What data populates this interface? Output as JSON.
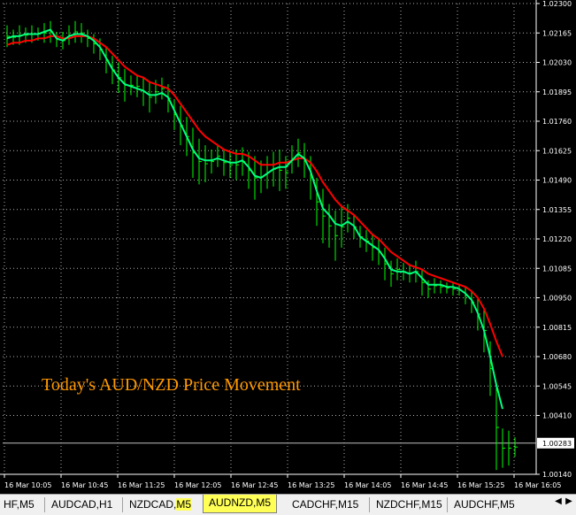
{
  "chart_data": {
    "type": "line",
    "symbol": "AUDNZD",
    "timeframe": "M5",
    "annotation": "Today's AUD/NZD Price Movement",
    "current_price_label": "1.00283",
    "y_ticks": [
      "1.02300",
      "1.02165",
      "1.02030",
      "1.01895",
      "1.01760",
      "1.01625",
      "1.01490",
      "1.01355",
      "1.01220",
      "1.01085",
      "1.00950",
      "1.00815",
      "1.00680",
      "1.00545",
      "1.00410",
      "1.00140"
    ],
    "x_ticks": [
      "16 Mar 10:05",
      "16 Mar 10:45",
      "16 Mar 11:25",
      "16 Mar 12:05",
      "16 Mar 12:45",
      "16 Mar 13:25",
      "16 Mar 14:05",
      "16 Mar 14:45",
      "16 Mar 15:25",
      "16 Mar 16:05"
    ],
    "ylim": [
      1.0014,
      1.023
    ],
    "grid": true,
    "colors": {
      "background": "#000000",
      "grid": "#b0b0b0",
      "axis_text": "#ffffff",
      "bars": "#00ff00",
      "fast_ma": "#00ff80",
      "slow_ma": "#ff0000",
      "annotation": "#ff9900",
      "price_line": "#c0c0c0"
    },
    "bars": [
      {
        "t": 0,
        "high": 1.022,
        "low": 1.021
      },
      {
        "t": 1,
        "high": 1.0218,
        "low": 1.0211
      },
      {
        "t": 2,
        "high": 1.022,
        "low": 1.0211
      },
      {
        "t": 3,
        "high": 1.0219,
        "low": 1.0212
      },
      {
        "t": 4,
        "high": 1.022,
        "low": 1.0212
      },
      {
        "t": 5,
        "high": 1.0219,
        "low": 1.0213
      },
      {
        "t": 6,
        "high": 1.0221,
        "low": 1.0212
      },
      {
        "t": 7,
        "high": 1.0222,
        "low": 1.0212
      },
      {
        "t": 8,
        "high": 1.0217,
        "low": 1.021
      },
      {
        "t": 9,
        "high": 1.0217,
        "low": 1.0209
      },
      {
        "t": 10,
        "high": 1.022,
        "low": 1.0211
      },
      {
        "t": 11,
        "high": 1.0222,
        "low": 1.0212
      },
      {
        "t": 12,
        "high": 1.0221,
        "low": 1.0212
      },
      {
        "t": 13,
        "high": 1.0218,
        "low": 1.021
      },
      {
        "t": 14,
        "high": 1.0216,
        "low": 1.0207
      },
      {
        "t": 15,
        "high": 1.0214,
        "low": 1.0204
      },
      {
        "t": 16,
        "high": 1.021,
        "low": 1.0198
      },
      {
        "t": 17,
        "high": 1.0206,
        "low": 1.0193
      },
      {
        "t": 18,
        "high": 1.0203,
        "low": 1.0189
      },
      {
        "t": 19,
        "high": 1.02,
        "low": 1.0185
      },
      {
        "t": 20,
        "high": 1.0197,
        "low": 1.0188
      },
      {
        "t": 21,
        "high": 1.0197,
        "low": 1.0187
      },
      {
        "t": 22,
        "high": 1.0196,
        "low": 1.0183
      },
      {
        "t": 23,
        "high": 1.0194,
        "low": 1.018
      },
      {
        "t": 24,
        "high": 1.0195,
        "low": 1.0184
      },
      {
        "t": 25,
        "high": 1.0196,
        "low": 1.0186
      },
      {
        "t": 26,
        "high": 1.0193,
        "low": 1.018
      },
      {
        "t": 27,
        "high": 1.0186,
        "low": 1.0172
      },
      {
        "t": 28,
        "high": 1.0183,
        "low": 1.0165
      },
      {
        "t": 29,
        "high": 1.0178,
        "low": 1.016
      },
      {
        "t": 30,
        "high": 1.0173,
        "low": 1.015
      },
      {
        "t": 31,
        "high": 1.0168,
        "low": 1.0147
      },
      {
        "t": 32,
        "high": 1.0165,
        "low": 1.0148
      },
      {
        "t": 33,
        "high": 1.0163,
        "low": 1.0152
      },
      {
        "t": 34,
        "high": 1.0165,
        "low": 1.0155
      },
      {
        "t": 35,
        "high": 1.0163,
        "low": 1.0151
      },
      {
        "t": 36,
        "high": 1.0162,
        "low": 1.015
      },
      {
        "t": 37,
        "high": 1.0163,
        "low": 1.0149
      },
      {
        "t": 38,
        "high": 1.0164,
        "low": 1.0151
      },
      {
        "t": 39,
        "high": 1.0162,
        "low": 1.0145
      },
      {
        "t": 40,
        "high": 1.016,
        "low": 1.014
      },
      {
        "t": 41,
        "high": 1.0158,
        "low": 1.0143
      },
      {
        "t": 42,
        "high": 1.016,
        "low": 1.0145
      },
      {
        "t": 43,
        "high": 1.0162,
        "low": 1.0146
      },
      {
        "t": 44,
        "high": 1.0163,
        "low": 1.0144
      },
      {
        "t": 45,
        "high": 1.016,
        "low": 1.0145
      },
      {
        "t": 46,
        "high": 1.0165,
        "low": 1.0152
      },
      {
        "t": 47,
        "high": 1.0168,
        "low": 1.0155
      },
      {
        "t": 48,
        "high": 1.0166,
        "low": 1.015
      },
      {
        "t": 49,
        "high": 1.016,
        "low": 1.014
      },
      {
        "t": 50,
        "high": 1.015,
        "low": 1.0128
      },
      {
        "t": 51,
        "high": 1.0145,
        "low": 1.012
      },
      {
        "t": 52,
        "high": 1.0138,
        "low": 1.0118
      },
      {
        "t": 53,
        "high": 1.0135,
        "low": 1.0112
      },
      {
        "t": 54,
        "high": 1.0137,
        "low": 1.0118
      },
      {
        "t": 55,
        "high": 1.0138,
        "low": 1.0125
      },
      {
        "t": 56,
        "high": 1.0133,
        "low": 1.0122
      },
      {
        "t": 57,
        "high": 1.0128,
        "low": 1.0118
      },
      {
        "t": 58,
        "high": 1.0126,
        "low": 1.0116
      },
      {
        "t": 59,
        "high": 1.0124,
        "low": 1.0112
      },
      {
        "t": 60,
        "high": 1.0122,
        "low": 1.011
      },
      {
        "t": 61,
        "high": 1.0118,
        "low": 1.0103
      },
      {
        "t": 62,
        "high": 1.0112,
        "low": 1.01
      },
      {
        "t": 63,
        "high": 1.0113,
        "low": 1.0103
      },
      {
        "t": 64,
        "high": 1.0111,
        "low": 1.0103
      },
      {
        "t": 65,
        "high": 1.011,
        "low": 1.0102
      },
      {
        "t": 66,
        "high": 1.0112,
        "low": 1.0102
      },
      {
        "t": 67,
        "high": 1.0108,
        "low": 1.0096
      },
      {
        "t": 68,
        "high": 1.0103,
        "low": 1.0095
      },
      {
        "t": 69,
        "high": 1.0104,
        "low": 1.0097
      },
      {
        "t": 70,
        "high": 1.0103,
        "low": 1.0097
      },
      {
        "t": 71,
        "high": 1.0102,
        "low": 1.0097
      },
      {
        "t": 72,
        "high": 1.0102,
        "low": 1.0096
      },
      {
        "t": 73,
        "high": 1.0101,
        "low": 1.0096
      },
      {
        "t": 74,
        "high": 1.01,
        "low": 1.0092
      },
      {
        "t": 75,
        "high": 1.0098,
        "low": 1.0088
      },
      {
        "t": 76,
        "high": 1.0095,
        "low": 1.008
      },
      {
        "t": 77,
        "high": 1.009,
        "low": 1.007
      },
      {
        "t": 78,
        "high": 1.0075,
        "low": 1.005
      },
      {
        "t": 79,
        "high": 1.0055,
        "low": 1.0016
      },
      {
        "t": 80,
        "high": 1.0035,
        "low": 1.0017
      },
      {
        "t": 81,
        "high": 1.0034,
        "low": 1.0018
      },
      {
        "t": 82,
        "high": 1.0031,
        "low": 1.0022
      }
    ],
    "series": [
      {
        "values": [
          1.0214,
          1.0215,
          1.0215,
          1.0216,
          1.0216,
          1.0216,
          1.0217,
          1.0218,
          1.0214,
          1.0213,
          1.0215,
          1.0216,
          1.0216,
          1.0215,
          1.0213,
          1.021,
          1.0205,
          1.02,
          1.0196,
          1.0193,
          1.0192,
          1.0191,
          1.019,
          1.0188,
          1.0188,
          1.0189,
          1.0187,
          1.0181,
          1.0175,
          1.0169,
          1.0163,
          1.0159,
          1.0158,
          1.0158,
          1.0159,
          1.0158,
          1.0157,
          1.0157,
          1.0158,
          1.0155,
          1.0151,
          1.015,
          1.0152,
          1.0154,
          1.0155,
          1.0155,
          1.0158,
          1.0161,
          1.0159,
          1.0153,
          1.0144,
          1.0136,
          1.0133,
          1.0129,
          1.0128,
          1.013,
          1.0128,
          1.0123,
          1.0121,
          1.0119,
          1.0117,
          1.0113,
          1.0108,
          1.0107,
          1.0107,
          1.0106,
          1.0107,
          1.0104,
          1.0101,
          1.0101,
          1.0101,
          1.01,
          1.01,
          1.0099,
          1.0097,
          1.0094,
          1.0088,
          1.008,
          1.0068,
          1.0055,
          1.0044
        ]
      },
      {
        "values": [
          1.0211,
          1.0212,
          1.0212,
          1.0213,
          1.0213,
          1.0214,
          1.0214,
          1.0215,
          1.0215,
          1.0214,
          1.0214,
          1.0215,
          1.0215,
          1.0215,
          1.0214,
          1.0212,
          1.021,
          1.0207,
          1.0204,
          1.0201,
          1.0199,
          1.0197,
          1.0196,
          1.0194,
          1.0193,
          1.0192,
          1.0191,
          1.0188,
          1.0184,
          1.018,
          1.0176,
          1.0172,
          1.0169,
          1.0167,
          1.0165,
          1.0163,
          1.0162,
          1.0161,
          1.0161,
          1.016,
          1.0158,
          1.0156,
          1.0156,
          1.0156,
          1.0157,
          1.0157,
          1.0158,
          1.0159,
          1.0159,
          1.0157,
          1.0153,
          1.0148,
          1.0144,
          1.014,
          1.0137,
          1.0135,
          1.0133,
          1.013,
          1.0127,
          1.0124,
          1.0122,
          1.0119,
          1.0116,
          1.0114,
          1.0112,
          1.011,
          1.0109,
          1.0108,
          1.0106,
          1.0105,
          1.0104,
          1.0103,
          1.0102,
          1.0101,
          1.01,
          1.0098,
          1.0095,
          1.009,
          1.0083,
          1.0075,
          1.0068
        ]
      }
    ]
  },
  "tabs": [
    {
      "label": "HF,M5"
    },
    {
      "label": "AUDCAD,H1"
    },
    {
      "label_a": "NZDCAD,",
      "label_b": "M5"
    },
    {
      "label": "AUDNZD,M5"
    },
    {
      "label": "CADCHF,M15"
    },
    {
      "label": "NZDCHF,M15"
    },
    {
      "label": "AUDCHF,M5"
    }
  ],
  "icons": {
    "scroll_left": "left-arrow-icon",
    "scroll_right": "right-arrow-icon"
  }
}
